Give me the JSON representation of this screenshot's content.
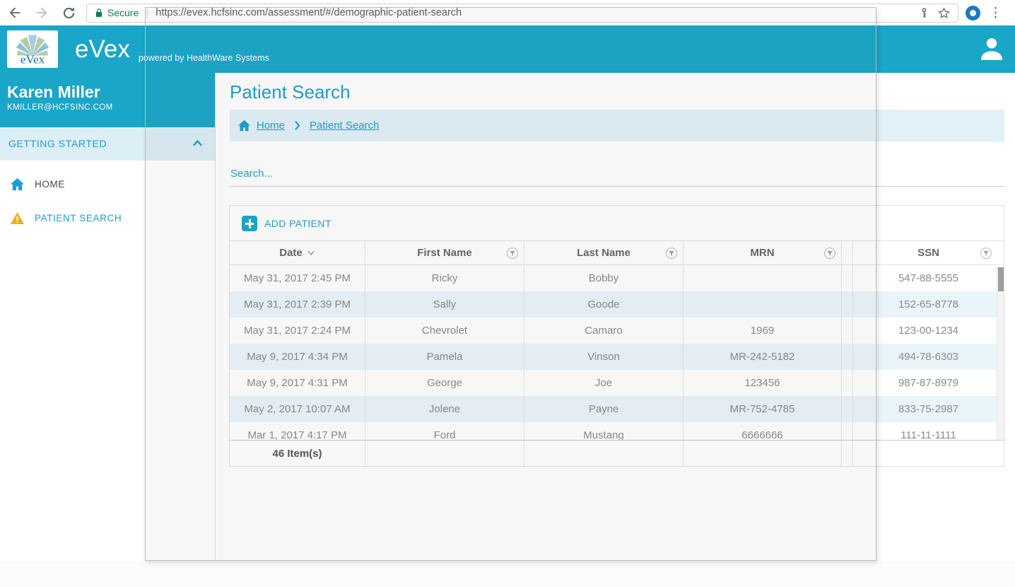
{
  "browser": {
    "secure_label": "Secure",
    "url": "https://evex.hcfsinc.com/assessment/#/demographic-patient-search"
  },
  "header": {
    "logo_text": "eVex",
    "brand": "eVex",
    "tagline": "powered by HealthWare Systems"
  },
  "sidebar": {
    "user_name": "Karen Miller",
    "user_email": "KMILLER@HCFSINC.COM",
    "section": "GETTING STARTED",
    "items": [
      {
        "label": "HOME"
      },
      {
        "label": "PATIENT SEARCH"
      }
    ]
  },
  "main": {
    "title": "Patient Search",
    "breadcrumb": {
      "home": "Home",
      "current": "Patient Search"
    },
    "search_placeholder": "Search...",
    "add_patient_label": "ADD PATIENT",
    "table": {
      "columns": [
        "Date",
        "First Name",
        "Last Name",
        "MRN",
        "SSN"
      ],
      "rows": [
        [
          "May 31, 2017 2:45 PM",
          "Ricky",
          "Bobby",
          "",
          "547-88-5555"
        ],
        [
          "May 31, 2017 2:39 PM",
          "Sally",
          "Goode",
          "",
          "152-65-8778"
        ],
        [
          "May 31, 2017 2:24 PM",
          "Chevrolet",
          "Camaro",
          "1969",
          "123-00-1234"
        ],
        [
          "May 9, 2017 4:34 PM",
          "Pamela",
          "Vinson",
          "MR-242-5182",
          "494-78-6303"
        ],
        [
          "May 9, 2017 4:31 PM",
          "George",
          "Joe",
          "123456",
          "987-87-8979"
        ],
        [
          "May 2, 2017 10:07 AM",
          "Jolene",
          "Payne",
          "MR-752-4785",
          "833-75-2987"
        ],
        [
          "Mar 1, 2017 4:17 PM",
          "Ford",
          "Mustang",
          "6666666",
          "111-11-1111"
        ]
      ],
      "footer": "46 Item(s)"
    }
  },
  "colors": {
    "accent_teal": "#19a6c8",
    "link_teal": "#1c9fc7",
    "row_alt": "#eaf5fa",
    "breadcrumb_bg": "#e2f1f7",
    "secure_green": "#0b8043",
    "warning_orange": "#f0ad24",
    "home_icon_blue": "#1e9cd8"
  }
}
